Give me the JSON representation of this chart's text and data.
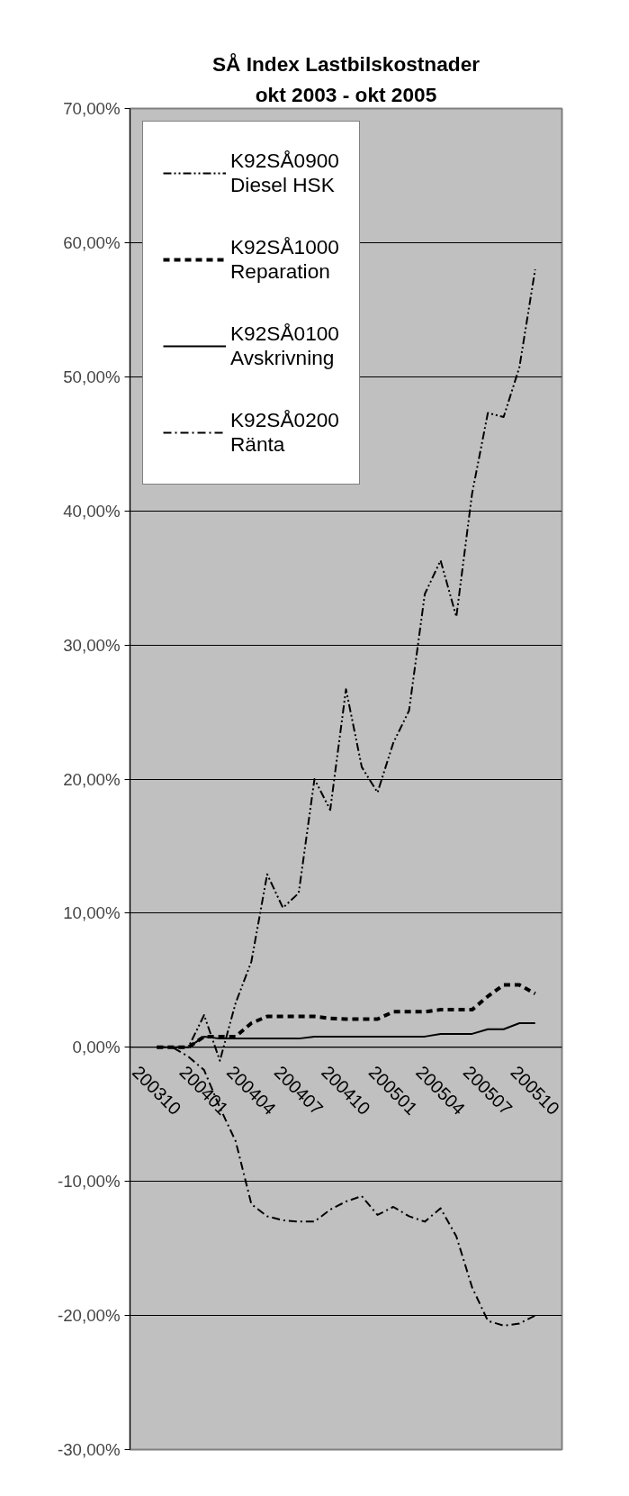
{
  "chart_data": {
    "type": "line",
    "title": "SÅ Index Lastbilskostnader",
    "subtitle": "okt 2003 - okt 2005",
    "categories": [
      "200310",
      null,
      null,
      "200401",
      null,
      null,
      "200404",
      null,
      null,
      "200407",
      null,
      null,
      "200410",
      null,
      null,
      "200501",
      null,
      null,
      "200504",
      null,
      null,
      "200507",
      null,
      null,
      "200510"
    ],
    "series": [
      {
        "name": "K92SÅ0900\nDiesel HSK",
        "color": "#000000",
        "line_style": "dashdotdot",
        "values": [
          0,
          0,
          0,
          2.4,
          -1.0,
          3.3,
          6.4,
          12.9,
          10.4,
          11.5,
          20.0,
          17.7,
          26.7,
          20.9,
          19.0,
          22.7,
          25.1,
          33.8,
          36.3,
          32.1,
          41.3,
          47.3,
          47.0,
          50.7,
          58.0
        ]
      },
      {
        "name": "K92SÅ1000\nReparation",
        "color": "#000000",
        "line_style": "dashed",
        "values": [
          0,
          0,
          0,
          0.8,
          0.8,
          0.8,
          1.8,
          2.3,
          2.3,
          2.3,
          2.3,
          2.15,
          2.1,
          2.1,
          2.1,
          2.65,
          2.65,
          2.65,
          2.8,
          2.8,
          2.8,
          3.8,
          4.65,
          4.65,
          4.0
        ]
      },
      {
        "name": "K92SÅ0100\nAvskrivning",
        "color": "#000000",
        "line_style": "solid",
        "values": [
          0,
          0,
          0,
          0.8,
          0.65,
          0.65,
          0.65,
          0.65,
          0.65,
          0.65,
          0.8,
          0.8,
          0.8,
          0.8,
          0.8,
          0.8,
          0.8,
          0.8,
          1.0,
          1.0,
          1.0,
          1.35,
          1.35,
          1.8,
          1.8
        ]
      },
      {
        "name": "K92SÅ0200\nRänta",
        "color": "#000000",
        "line_style": "dashdot",
        "values": [
          0,
          0,
          -0.7,
          -1.7,
          -4.5,
          -7.0,
          -11.7,
          -12.6,
          -12.9,
          -13.0,
          -13.0,
          -12.1,
          -11.5,
          -11.1,
          -12.5,
          -11.9,
          -12.6,
          -13.0,
          -12.0,
          -14.1,
          -17.9,
          -20.4,
          -20.75,
          -20.6,
          -20.0
        ]
      }
    ],
    "ylim": [
      -30,
      70
    ],
    "yticks": [
      {
        "value": -30,
        "label": "-30,00%"
      },
      {
        "value": -20,
        "label": "-20,00%"
      },
      {
        "value": -10,
        "label": "-10,00%"
      },
      {
        "value": 0,
        "label": "0,00%"
      },
      {
        "value": 10,
        "label": "10,00%"
      },
      {
        "value": 20,
        "label": "20,00%"
      },
      {
        "value": 30,
        "label": "30,00%"
      },
      {
        "value": 40,
        "label": "40,00%"
      },
      {
        "value": 50,
        "label": "50,00%"
      },
      {
        "value": 60,
        "label": "60,00%"
      },
      {
        "value": 70,
        "label": "70,00%"
      }
    ],
    "grid": "y",
    "legend": "top left"
  }
}
